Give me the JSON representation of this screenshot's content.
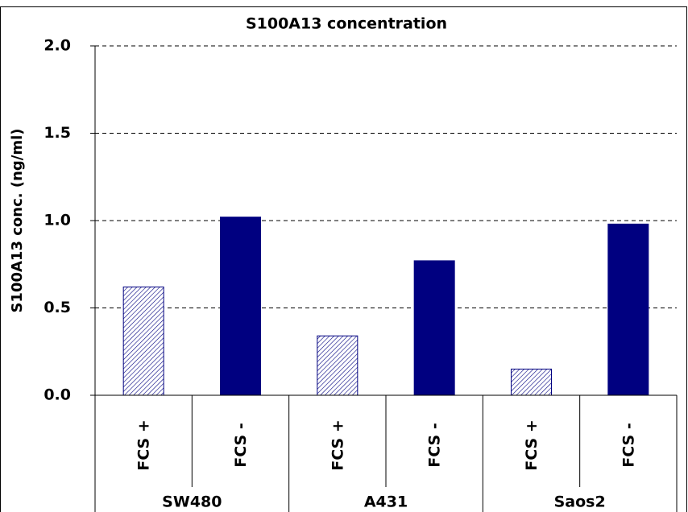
{
  "chart_data": {
    "type": "bar",
    "title": "S100A13 concentration",
    "y_label": "S100A13 conc. (ng/ml)",
    "categories": [
      "FCS +",
      "FCS -",
      "FCS +",
      "FCS -",
      "FCS +",
      "FCS -"
    ],
    "groups": [
      "SW480",
      "A431",
      "Saos2"
    ],
    "values": [
      0.62,
      1.02,
      0.34,
      0.77,
      0.15,
      0.98
    ],
    "bar_styles": [
      "hatched",
      "solid",
      "hatched",
      "solid",
      "hatched",
      "solid"
    ],
    "color": "#000080",
    "ylim": [
      0,
      2
    ],
    "yticks": [
      {
        "value": 0,
        "label": "0.0"
      },
      0.5,
      {
        "value": 1,
        "label": "1.0"
      },
      1.5,
      {
        "value": 2,
        "label": "2.0"
      }
    ],
    "grid": true
  }
}
